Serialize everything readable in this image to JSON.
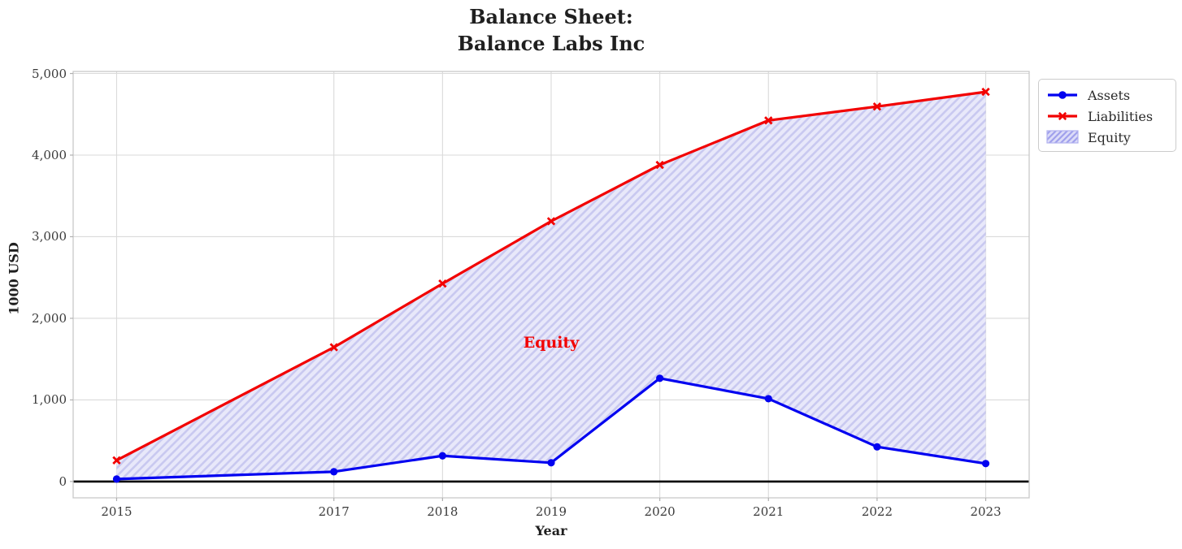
{
  "chart_data": {
    "type": "line",
    "title": "Balance Sheet:\nBalance Labs Inc",
    "xlabel": "Year",
    "ylabel": "1000 USD",
    "x": [
      2015,
      2017,
      2018,
      2019,
      2020,
      2021,
      2022,
      2023
    ],
    "x_ticklabels": [
      "2015",
      "2017",
      "2018",
      "2019",
      "2020",
      "2021",
      "2022",
      "2023"
    ],
    "y_ticks": [
      0,
      1000,
      2000,
      3000,
      4000,
      5000
    ],
    "y_ticklabels": [
      "0",
      "1,000",
      "2,000",
      "3,000",
      "4,000",
      "5,000"
    ],
    "xlim": [
      2014.6,
      2023.4
    ],
    "ylim": [
      -200,
      5025
    ],
    "grid": true,
    "legend_position": "upper right, outside axes",
    "series": [
      {
        "name": "Assets",
        "marker": "circle",
        "color": "#0202f0",
        "values": [
          30,
          120,
          315,
          230,
          1265,
          1015,
          425,
          220
        ]
      },
      {
        "name": "Liabilities",
        "marker": "x",
        "color": "#f20202",
        "values": [
          260,
          1645,
          2425,
          3190,
          3880,
          4425,
          4595,
          4775
        ]
      }
    ],
    "fill_between": {
      "label": "Equity",
      "upper": "Liabilities",
      "lower": "Assets",
      "fill_color": "#e8e8fa",
      "hatch_color": "#c9c9f0"
    },
    "annotation": {
      "text": "Equity",
      "x": 2019,
      "y": 1700,
      "color": "#f20202"
    },
    "zero_line_color": "#000000",
    "legend": {
      "items": [
        {
          "label": "Assets"
        },
        {
          "label": "Liabilities"
        },
        {
          "label": "Equity"
        }
      ]
    }
  }
}
